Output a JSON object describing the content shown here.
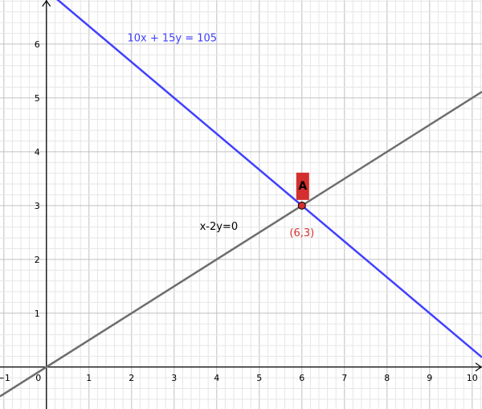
{
  "chart_data": {
    "type": "line",
    "title": "",
    "xlabel": "",
    "ylabel": "",
    "xlim": [
      -1.09,
      10.23
    ],
    "ylim": [
      -0.78,
      6.82
    ],
    "grid": true,
    "minor_grid_step": 0.2,
    "x_ticks": [
      -1,
      0,
      1,
      2,
      3,
      4,
      5,
      6,
      7,
      8,
      9,
      10
    ],
    "x_tick_labels": [
      "−1",
      "0",
      "1",
      "2",
      "3",
      "4",
      "5",
      "6",
      "7",
      "8",
      "9",
      "10"
    ],
    "y_ticks": [
      1,
      2,
      3,
      4,
      5,
      6
    ],
    "y_tick_labels": [
      "1",
      "2",
      "3",
      "4",
      "5",
      "6"
    ],
    "series": [
      {
        "label": "10x + 15y = 105",
        "a": 10,
        "b": 15,
        "c": 105,
        "color": "#4040ff",
        "label_at": [
          1.9,
          6.05
        ]
      },
      {
        "label": "x-2y=0",
        "a": 1,
        "b": -2,
        "c": 0,
        "color": "#6e6e6e",
        "label_color": "#000000",
        "label_at": [
          3.6,
          2.55
        ]
      }
    ],
    "points": [
      {
        "name": "A",
        "x": 6,
        "y": 3,
        "coord_label": "(6,3)",
        "color": "#d32f2f"
      }
    ]
  }
}
